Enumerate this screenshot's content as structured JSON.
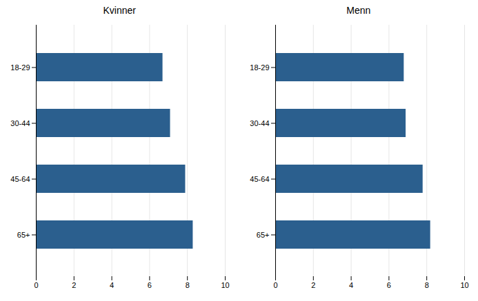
{
  "chart_data": [
    {
      "type": "bar",
      "orientation": "horizontal",
      "title": "Kvinner",
      "categories": [
        "18-29",
        "30-44",
        "45-64",
        "65+"
      ],
      "values": [
        6.7,
        7.1,
        7.9,
        8.3
      ],
      "color": "#2b5f8e",
      "xlim": [
        0,
        10
      ],
      "xticks": [
        0,
        2,
        4,
        6,
        8,
        10
      ],
      "grid": true
    },
    {
      "type": "bar",
      "orientation": "horizontal",
      "title": "Menn",
      "categories": [
        "18-29",
        "30-44",
        "45-64",
        "65+"
      ],
      "values": [
        6.8,
        6.9,
        7.8,
        8.2
      ],
      "color": "#2b5f8e",
      "xlim": [
        0,
        10
      ],
      "xticks": [
        0,
        2,
        4,
        6,
        8,
        10
      ],
      "grid": true
    }
  ]
}
